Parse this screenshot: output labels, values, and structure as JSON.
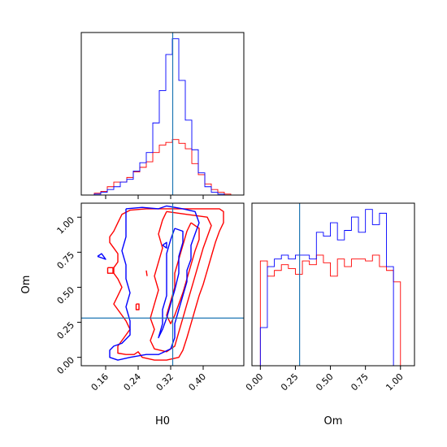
{
  "chart_data": {
    "type": "corner",
    "parameters": [
      "H0",
      "Om"
    ],
    "truth": {
      "H0": 0.325,
      "Om": 0.28
    },
    "colors": {
      "series_a": "#ff0000",
      "series_b": "#0000ff",
      "truth": "#1f77b4"
    },
    "panels": [
      {
        "id": "hist-H0",
        "type": "histogram",
        "xlim": [
          0.1,
          0.5
        ],
        "x_ticks": [
          0.16,
          0.24,
          0.32,
          0.4
        ],
        "x_tick_labels": [],
        "bin_edges": [
          0.1,
          0.116,
          0.132,
          0.148,
          0.164,
          0.18,
          0.196,
          0.212,
          0.228,
          0.244,
          0.26,
          0.276,
          0.292,
          0.308,
          0.324,
          0.34,
          0.356,
          0.372,
          0.388,
          0.404,
          0.42,
          0.436,
          0.452,
          0.468,
          0.484,
          0.5
        ],
        "series": [
          {
            "color": "red",
            "counts": [
              0,
              0,
              2,
              4,
              9,
              14,
              14,
              19,
              25,
              30,
              36,
              46,
              54,
              57,
              60,
              56,
              50,
              34,
              22,
              12,
              6,
              3,
              1,
              0,
              0
            ]
          },
          {
            "color": "blue",
            "counts": [
              0,
              0,
              1,
              3,
              6,
              9,
              14,
              17,
              26,
              35,
              46,
              78,
              113,
              152,
              169,
              124,
              81,
              49,
              24,
              9,
              3,
              1,
              0,
              0,
              0
            ]
          }
        ]
      },
      {
        "id": "contour-H0-Om",
        "type": "contour",
        "xlim": [
          0.1,
          0.5
        ],
        "ylim": [
          -0.06,
          1.1
        ],
        "x_ticks": [
          0.16,
          0.24,
          0.32,
          0.4
        ],
        "x_tick_labels": [
          "0.16",
          "0.24",
          "0.32",
          "0.40"
        ],
        "y_ticks": [
          0.0,
          0.25,
          0.5,
          0.75,
          1.0
        ],
        "y_tick_labels": [
          "0.00",
          "0.25",
          "0.50",
          "0.75",
          "1.00"
        ],
        "xlabel": "H0",
        "ylabel": "Om",
        "series": [
          {
            "color": "red",
            "contours": [
              [
                [
                  0.26,
                  1.06
                ],
                [
                  0.33,
                  1.06
                ],
                [
                  0.4,
                  1.06
                ],
                [
                  0.44,
                  1.06
                ],
                [
                  0.45,
                  1.04
                ],
                [
                  0.45,
                  0.96
                ],
                [
                  0.44,
                  0.9
                ],
                [
                  0.43,
                  0.82
                ],
                [
                  0.42,
                  0.72
                ],
                [
                  0.41,
                  0.62
                ],
                [
                  0.4,
                  0.52
                ],
                [
                  0.39,
                  0.44
                ],
                [
                  0.38,
                  0.34
                ],
                [
                  0.37,
                  0.24
                ],
                [
                  0.36,
                  0.14
                ],
                [
                  0.35,
                  0.05
                ],
                [
                  0.34,
                  0.0
                ],
                [
                  0.31,
                  -0.02
                ],
                [
                  0.28,
                  -0.02
                ],
                [
                  0.25,
                  0.0
                ],
                [
                  0.24,
                  0.04
                ],
                [
                  0.23,
                  0.02
                ],
                [
                  0.21,
                  0.02
                ],
                [
                  0.19,
                  0.03
                ],
                [
                  0.19,
                  0.08
                ],
                [
                  0.2,
                  0.12
                ],
                [
                  0.21,
                  0.16
                ],
                [
                  0.22,
                  0.2
                ],
                [
                  0.21,
                  0.26
                ],
                [
                  0.2,
                  0.3
                ],
                [
                  0.19,
                  0.34
                ],
                [
                  0.18,
                  0.38
                ],
                [
                  0.19,
                  0.44
                ],
                [
                  0.2,
                  0.5
                ],
                [
                  0.19,
                  0.56
                ],
                [
                  0.18,
                  0.6
                ],
                [
                  0.18,
                  0.64
                ],
                [
                  0.19,
                  0.68
                ],
                [
                  0.19,
                  0.74
                ],
                [
                  0.18,
                  0.78
                ],
                [
                  0.17,
                  0.82
                ],
                [
                  0.17,
                  0.86
                ],
                [
                  0.18,
                  0.9
                ],
                [
                  0.19,
                  0.96
                ],
                [
                  0.2,
                  1.02
                ],
                [
                  0.22,
                  1.05
                ],
                [
                  0.26,
                  1.06
                ]
              ],
              [
                [
                  0.31,
                  1.04
                ],
                [
                  0.36,
                  1.02
                ],
                [
                  0.41,
                  1.0
                ],
                [
                  0.42,
                  0.94
                ],
                [
                  0.41,
                  0.86
                ],
                [
                  0.4,
                  0.78
                ],
                [
                  0.39,
                  0.68
                ],
                [
                  0.38,
                  0.58
                ],
                [
                  0.37,
                  0.48
                ],
                [
                  0.36,
                  0.38
                ],
                [
                  0.35,
                  0.28
                ],
                [
                  0.34,
                  0.18
                ],
                [
                  0.33,
                  0.08
                ],
                [
                  0.31,
                  0.04
                ],
                [
                  0.28,
                  0.06
                ],
                [
                  0.27,
                  0.12
                ],
                [
                  0.28,
                  0.2
                ],
                [
                  0.27,
                  0.28
                ],
                [
                  0.28,
                  0.38
                ],
                [
                  0.29,
                  0.48
                ],
                [
                  0.28,
                  0.58
                ],
                [
                  0.29,
                  0.68
                ],
                [
                  0.3,
                  0.78
                ],
                [
                  0.29,
                  0.88
                ],
                [
                  0.3,
                  0.98
                ],
                [
                  0.31,
                  1.04
                ]
              ],
              [
                [
                  0.37,
                  0.96
                ],
                [
                  0.39,
                  0.92
                ],
                [
                  0.39,
                  0.84
                ],
                [
                  0.38,
                  0.76
                ],
                [
                  0.37,
                  0.66
                ],
                [
                  0.36,
                  0.56
                ],
                [
                  0.35,
                  0.46
                ],
                [
                  0.34,
                  0.38
                ],
                [
                  0.33,
                  0.3
                ],
                [
                  0.32,
                  0.24
                ],
                [
                  0.31,
                  0.3
                ],
                [
                  0.32,
                  0.4
                ],
                [
                  0.33,
                  0.5
                ],
                [
                  0.33,
                  0.6
                ],
                [
                  0.34,
                  0.7
                ],
                [
                  0.35,
                  0.8
                ],
                [
                  0.36,
                  0.9
                ],
                [
                  0.37,
                  0.96
                ]
              ],
              [
                [
                  0.165,
                  0.64
                ],
                [
                  0.178,
                  0.64
                ],
                [
                  0.178,
                  0.6
                ],
                [
                  0.165,
                  0.6
                ],
                [
                  0.165,
                  0.64
                ]
              ],
              [
                [
                  0.235,
                  0.38
                ],
                [
                  0.242,
                  0.38
                ],
                [
                  0.242,
                  0.34
                ],
                [
                  0.235,
                  0.34
                ],
                [
                  0.235,
                  0.38
                ]
              ],
              [
                [
                  0.26,
                  0.62
                ],
                [
                  0.262,
                  0.58
                ]
              ]
            ]
          },
          {
            "color": "blue",
            "contours": [
              [
                [
                  0.21,
                  1.06
                ],
                [
                  0.25,
                  1.07
                ],
                [
                  0.29,
                  1.06
                ],
                [
                  0.31,
                  1.08
                ],
                [
                  0.35,
                  1.06
                ],
                [
                  0.38,
                  1.04
                ],
                [
                  0.39,
                  0.96
                ],
                [
                  0.38,
                  0.88
                ],
                [
                  0.37,
                  0.8
                ],
                [
                  0.37,
                  0.7
                ],
                [
                  0.36,
                  0.62
                ],
                [
                  0.36,
                  0.54
                ],
                [
                  0.35,
                  0.44
                ],
                [
                  0.34,
                  0.34
                ],
                [
                  0.33,
                  0.24
                ],
                [
                  0.33,
                  0.14
                ],
                [
                  0.32,
                  0.06
                ],
                [
                  0.29,
                  0.02
                ],
                [
                  0.26,
                  0.02
                ],
                [
                  0.22,
                  0.0
                ],
                [
                  0.19,
                  -0.02
                ],
                [
                  0.17,
                  0.0
                ],
                [
                  0.17,
                  0.05
                ],
                [
                  0.18,
                  0.08
                ],
                [
                  0.2,
                  0.1
                ],
                [
                  0.22,
                  0.16
                ],
                [
                  0.22,
                  0.26
                ],
                [
                  0.21,
                  0.36
                ],
                [
                  0.22,
                  0.46
                ],
                [
                  0.21,
                  0.56
                ],
                [
                  0.21,
                  0.66
                ],
                [
                  0.2,
                  0.76
                ],
                [
                  0.21,
                  0.86
                ],
                [
                  0.21,
                  0.96
                ],
                [
                  0.21,
                  1.06
                ]
              ],
              [
                [
                  0.33,
                  0.92
                ],
                [
                  0.35,
                  0.9
                ],
                [
                  0.35,
                  0.82
                ],
                [
                  0.34,
                  0.72
                ],
                [
                  0.34,
                  0.6
                ],
                [
                  0.33,
                  0.48
                ],
                [
                  0.32,
                  0.38
                ],
                [
                  0.31,
                  0.28
                ],
                [
                  0.3,
                  0.2
                ],
                [
                  0.29,
                  0.14
                ],
                [
                  0.3,
                  0.24
                ],
                [
                  0.3,
                  0.34
                ],
                [
                  0.31,
                  0.44
                ],
                [
                  0.31,
                  0.54
                ],
                [
                  0.31,
                  0.64
                ],
                [
                  0.31,
                  0.74
                ],
                [
                  0.32,
                  0.84
                ],
                [
                  0.33,
                  0.92
                ]
              ],
              [
                [
                  0.14,
                  0.72
                ],
                [
                  0.16,
                  0.7
                ],
                [
                  0.15,
                  0.74
                ],
                [
                  0.14,
                  0.72
                ]
              ],
              [
                [
                  0.3,
                  0.8
                ],
                [
                  0.31,
                  0.82
                ],
                [
                  0.31,
                  0.78
                ],
                [
                  0.3,
                  0.8
                ]
              ]
            ]
          }
        ]
      },
      {
        "id": "hist-Om",
        "type": "histogram",
        "xlim": [
          -0.06,
          1.1
        ],
        "x_ticks": [
          0.0,
          0.25,
          0.5,
          0.75,
          1.0
        ],
        "x_tick_labels": [
          "0.00",
          "0.25",
          "0.50",
          "0.75",
          "1.00"
        ],
        "xlabel": "Om",
        "bin_edges": [
          0.0,
          0.05,
          0.1,
          0.15,
          0.2,
          0.25,
          0.3,
          0.35,
          0.4,
          0.45,
          0.5,
          0.55,
          0.6,
          0.65,
          0.7,
          0.75,
          0.8,
          0.85,
          0.9,
          0.95,
          1.0
        ],
        "series": [
          {
            "color": "red",
            "counts": [
              55,
              47,
              50,
              53,
              51,
              48,
              55,
              53,
              58,
              54,
              47,
              56,
              52,
              56,
              56,
              55,
              58,
              52,
              50,
              44
            ]
          },
          {
            "color": "blue",
            "counts": [
              20,
              52,
              56,
              58,
              56,
              58,
              58,
              56,
              70,
              68,
              75,
              66,
              71,
              78,
              70,
              82,
              74,
              80,
              52,
              0
            ]
          }
        ]
      }
    ]
  }
}
